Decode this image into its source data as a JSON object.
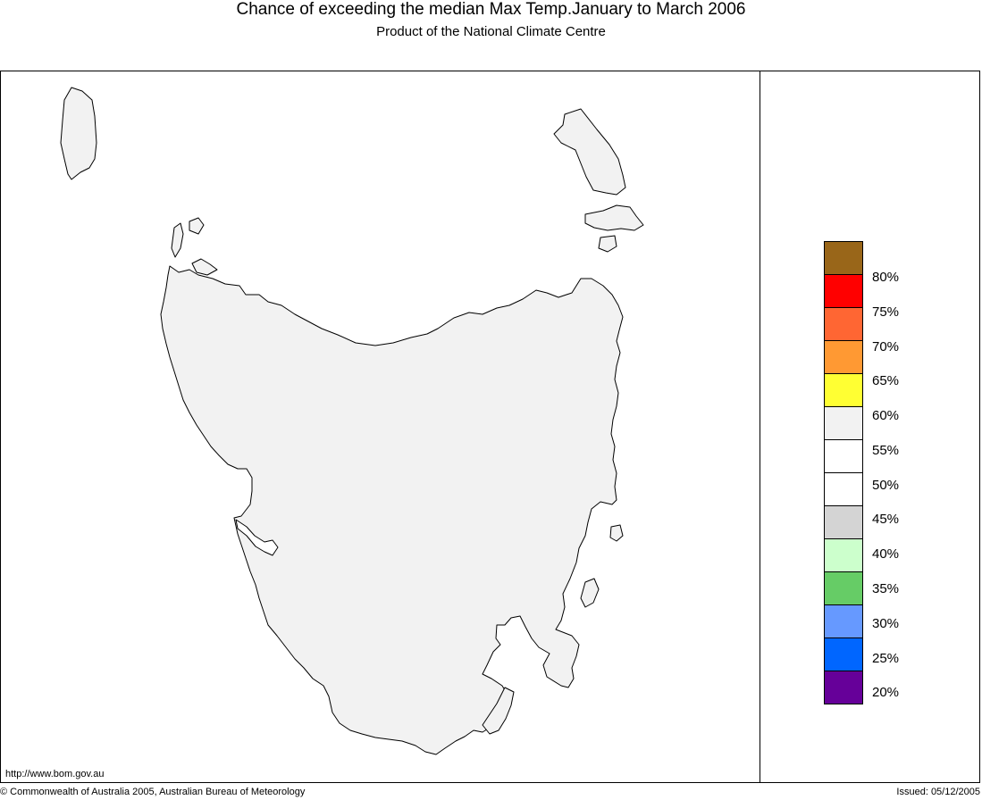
{
  "title": "Chance of exceeding the median Max Temp.January to March 2006",
  "subtitle": "Product of the National Climate Centre",
  "map": {
    "region": "Tasmania",
    "land_fill_color": "#f2f2f2",
    "land_category": "55%"
  },
  "legend": {
    "colors": [
      "#996619",
      "#ff0000",
      "#ff6633",
      "#ff9933",
      "#ffff33",
      "#f2f2f2",
      "#ffffff",
      "#ffffff",
      "#d4d4d4",
      "#ccffcc",
      "#66cc66",
      "#6699ff",
      "#0066ff",
      "#660099"
    ],
    "labels": [
      "80%",
      "75%",
      "70%",
      "65%",
      "60%",
      "55%",
      "50%",
      "45%",
      "40%",
      "35%",
      "30%",
      "25%",
      "20%"
    ]
  },
  "footer": {
    "url": "http://www.bom.gov.au",
    "copyright": "© Commonwealth of Australia 2005, Australian Bureau of Meteorology",
    "issued": "Issued: 05/12/2005"
  }
}
